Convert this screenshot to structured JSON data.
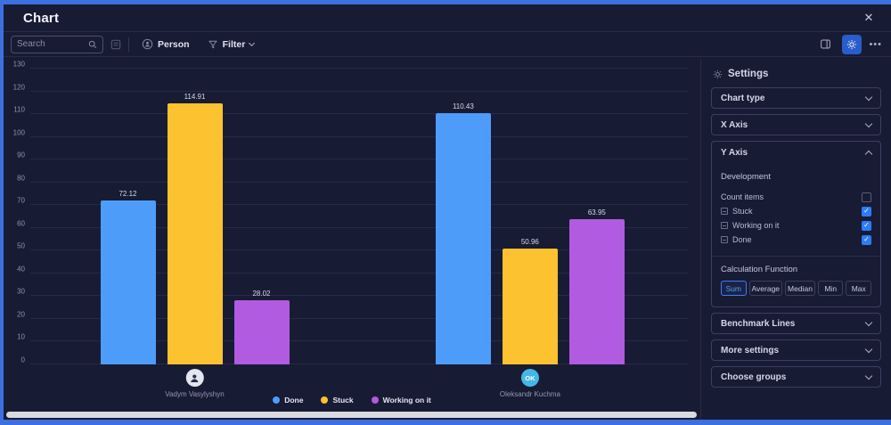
{
  "window": {
    "title": "Chart",
    "close_icon": "✕"
  },
  "toolbar": {
    "search": {
      "placeholder": "Search"
    },
    "person_label": "Person",
    "filter_label": "Filter",
    "more_label": "•••"
  },
  "icons": {
    "search": "magnifier",
    "board": "board-grid",
    "person": "person-circle",
    "filter": "funnel",
    "split_view": "panel-layout",
    "settings_button": "gear",
    "more": "ellipsis",
    "close": "x",
    "settings_header": "gear",
    "collapsed": "chevron-down",
    "expanded": "chevron-up"
  },
  "chart_data": {
    "type": "bar",
    "title": "",
    "categories": [
      "Vadym Vasylyshyn",
      "Oleksandr Kuchma"
    ],
    "series": [
      {
        "name": "Done",
        "color": "#4e9cf9",
        "values": [
          72.12,
          110.43
        ]
      },
      {
        "name": "Stuck",
        "color": "#fdc230",
        "values": [
          114.91,
          50.96
        ]
      },
      {
        "name": "Working on it",
        "color": "#b05be0",
        "values": [
          28.02,
          63.95
        ]
      }
    ],
    "ylim": [
      0,
      130
    ],
    "ytick_step": 10,
    "grid": true,
    "value_labels": true,
    "legend_position": "bottom",
    "group_centers_pct": [
      25,
      76
    ],
    "category_avatars": [
      {
        "kind": "person-icon",
        "text": "",
        "color": "#e3e6ee"
      },
      {
        "kind": "initials",
        "text": "OK",
        "color": "#43b7e9"
      }
    ]
  },
  "settings": {
    "title": "Settings",
    "sections": [
      {
        "label": "Chart type",
        "expanded": false
      },
      {
        "label": "X Axis",
        "expanded": false
      },
      {
        "label": "Y Axis",
        "expanded": true
      },
      {
        "label": "Benchmark Lines",
        "expanded": false
      },
      {
        "label": "More settings",
        "expanded": false
      },
      {
        "label": "Choose groups",
        "expanded": false
      }
    ],
    "y_axis": {
      "board_name": "Development",
      "items": [
        {
          "label": "Count items",
          "checked": false,
          "column_icon": false
        },
        {
          "label": "Stuck",
          "checked": true,
          "column_icon": true
        },
        {
          "label": "Working on it",
          "checked": true,
          "column_icon": true
        },
        {
          "label": "Done",
          "checked": true,
          "column_icon": true
        }
      ],
      "calculation": {
        "label": "Calculation Function",
        "options": [
          "Sum",
          "Average",
          "Median",
          "Min",
          "Max"
        ],
        "selected": "Sum"
      }
    }
  },
  "colors": {
    "accent_blue": "#2e7cf6",
    "frame_blue": "#3c6fe0",
    "background": "#181b34",
    "scrollbar": "#d9dadf"
  }
}
